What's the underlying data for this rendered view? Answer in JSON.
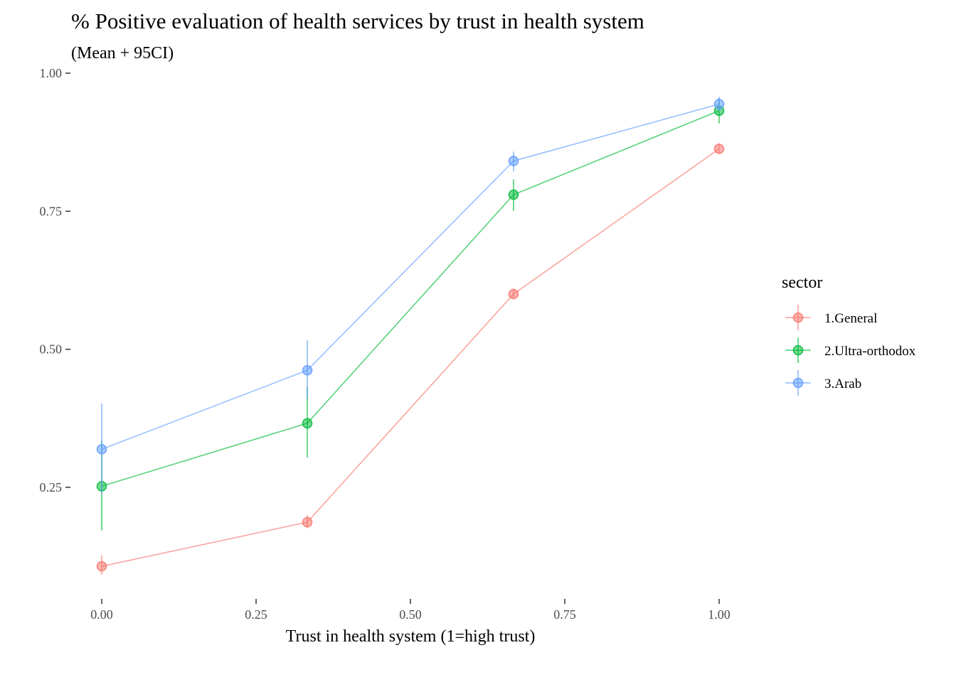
{
  "chart_data": {
    "type": "line",
    "title": "% Positive evaluation of health services by trust in health system",
    "subtitle": "(Mean + 95CI)",
    "xlabel": "Trust in health system (1=high trust)",
    "ylabel": "",
    "xlim": [
      0,
      1
    ],
    "ylim": [
      0.05,
      1.0
    ],
    "x_ticks": [
      0,
      0.25,
      0.5,
      0.75,
      1
    ],
    "x_tick_labels": [
      "0.00",
      "0.25",
      "0.50",
      "0.75",
      "1.00"
    ],
    "y_ticks": [
      0.25,
      0.5,
      0.75,
      1
    ],
    "y_tick_labels": [
      "0.25",
      "0.50",
      "0.75",
      "1.00"
    ],
    "grid": false,
    "legend": {
      "title": "sector",
      "position": "right"
    },
    "series": [
      {
        "name": "1.General",
        "color": "#F8766D",
        "x": [
          0,
          0.333,
          0.667,
          1
        ],
        "y": [
          0.107,
          0.187,
          0.6,
          0.863
        ],
        "ci_low": [
          0.092,
          0.176,
          0.592,
          0.856
        ],
        "ci_high": [
          0.127,
          0.2,
          0.61,
          0.873
        ]
      },
      {
        "name": "2.Ultra-orthodox",
        "color": "#00BA38",
        "x": [
          0,
          0.333,
          0.667,
          1
        ],
        "y": [
          0.252,
          0.366,
          0.78,
          0.932
        ],
        "ci_low": [
          0.172,
          0.304,
          0.751,
          0.909
        ],
        "ci_high": [
          0.335,
          0.432,
          0.808,
          0.955
        ]
      },
      {
        "name": "3.Arab",
        "color": "#619CFF",
        "x": [
          0,
          0.333,
          0.667,
          1
        ],
        "y": [
          0.319,
          0.462,
          0.841,
          0.944
        ],
        "ci_low": [
          0.237,
          0.41,
          0.822,
          0.932
        ],
        "ci_high": [
          0.402,
          0.516,
          0.858,
          0.957
        ]
      }
    ]
  }
}
